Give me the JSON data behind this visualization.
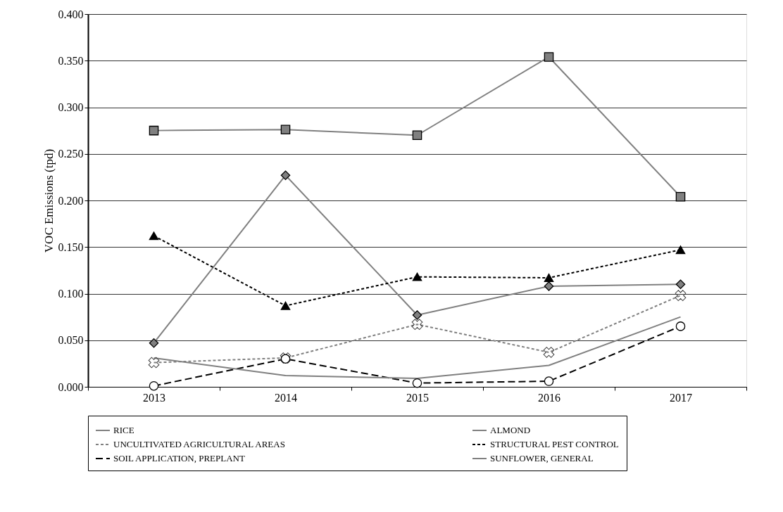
{
  "chart_data": {
    "type": "line",
    "ylabel": "VOC Emissions (tpd)",
    "categories": [
      "2013",
      "2014",
      "2015",
      "2016",
      "2017"
    ],
    "ylim": [
      0,
      0.4
    ],
    "yticks": [
      {
        "value": 0,
        "label": "0.000"
      },
      {
        "value": 0.05,
        "label": "0.050"
      },
      {
        "value": 0.1,
        "label": "0.100"
      },
      {
        "value": 0.15,
        "label": "0.150"
      },
      {
        "value": 0.2,
        "label": "0.200"
      },
      {
        "value": 0.25,
        "label": "0.250"
      },
      {
        "value": 0.3,
        "label": "0.300"
      },
      {
        "value": 0.35,
        "label": "0.350"
      },
      {
        "value": 0.4,
        "label": "0.400"
      }
    ],
    "grid": "y",
    "legend": "bottom",
    "series": [
      {
        "name": "RICE",
        "color": "#808080",
        "marker": "square",
        "line_style": "solid",
        "values": [
          0.275,
          0.276,
          0.27,
          0.354,
          0.204
        ]
      },
      {
        "name": "ALMOND",
        "color": "#808080",
        "marker": "diamond",
        "line_style": "solid",
        "values": [
          0.047,
          0.227,
          0.077,
          0.108,
          0.11
        ]
      },
      {
        "name": "UNCULTIVATED AGRICULTURAL AREAS",
        "color": "#808080",
        "marker": "cross",
        "line_style": "dotted",
        "values": [
          0.026,
          0.031,
          0.067,
          0.037,
          0.098
        ]
      },
      {
        "name": "STRUCTURAL PEST CONTROL",
        "color": "#000000",
        "marker": "triangle",
        "line_style": "dotted",
        "values": [
          0.162,
          0.087,
          0.118,
          0.117,
          0.147
        ]
      },
      {
        "name": "SOIL APPLICATION, PREPLANT",
        "color": "#000000",
        "marker": "circle",
        "line_style": "dashed",
        "values": [
          0.001,
          0.03,
          0.004,
          0.006,
          0.065
        ]
      },
      {
        "name": "SUNFLOWER, GENERAL",
        "color": "#808080",
        "marker": "none",
        "line_style": "solid",
        "values": [
          0.031,
          0.012,
          0.009,
          0.023,
          0.075
        ]
      }
    ]
  }
}
